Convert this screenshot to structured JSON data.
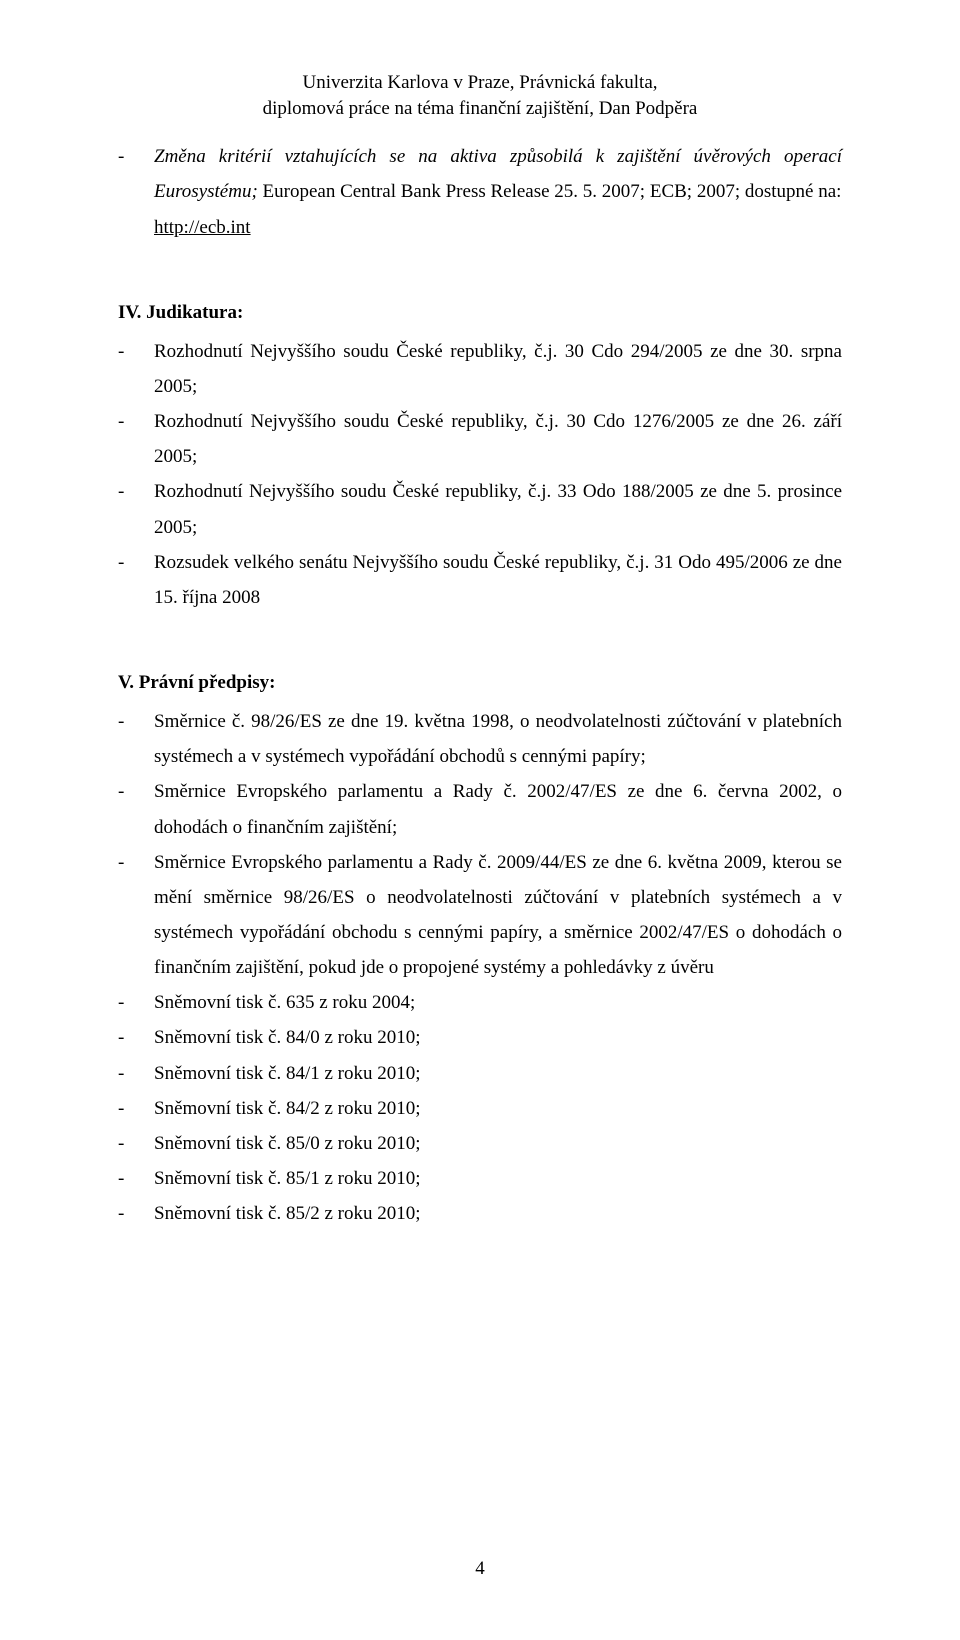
{
  "header": {
    "line1": "Univerzita Karlova v Praze, Právnická fakulta,",
    "line2": "diplomová práce na téma finanční zajištění, Dan Podpěra"
  },
  "topItem": {
    "italicPart": "Změna kritérií vztahujících se na aktiva způsobilá k zajištění úvěrových operací Eurosystému;",
    "rest": " European Central Bank Press Release 25. 5. 2007; ECB; 2007; dostupné na:"
  },
  "link": "http://ecb.int",
  "section4": {
    "title": "IV. Judikatura:",
    "items": [
      "Rozhodnutí Nejvyššího soudu České republiky, č.j. 30 Cdo 294/2005 ze dne 30. srpna 2005;",
      "Rozhodnutí Nejvyššího soudu České republiky, č.j. 30 Cdo 1276/2005 ze dne 26. září 2005;",
      "Rozhodnutí Nejvyššího soudu České republiky, č.j. 33 Odo 188/2005 ze dne 5. prosince 2005;",
      "Rozsudek velkého senátu Nejvyššího soudu České republiky, č.j. 31 Odo 495/2006 ze dne 15. října 2008"
    ]
  },
  "section5": {
    "title": "V. Právní předpisy:",
    "items": [
      "Směrnice č. 98/26/ES ze dne 19. května 1998, o neodvolatelnosti zúčtování v platebních systémech a v systémech vypořádání obchodů s cennými papíry;",
      "Směrnice Evropského parlamentu a Rady č. 2002/47/ES ze dne 6. června 2002, o dohodách o finančním zajištění;",
      "Směrnice Evropského parlamentu a Rady č. 2009/44/ES ze dne 6. května 2009, kterou se mění směrnice 98/26/ES o neodvolatelnosti zúčtování v platebních systémech a v systémech vypořádání obchodu s cennými papíry, a směrnice 2002/47/ES o dohodách o finančním zajištění, pokud jde o propojené systémy a pohledávky z úvěru",
      "Sněmovní tisk č. 635 z roku 2004;",
      "Sněmovní tisk č. 84/0 z roku 2010;",
      "Sněmovní tisk č. 84/1 z roku 2010;",
      "Sněmovní tisk č. 84/2 z roku 2010;",
      "Sněmovní tisk č. 85/0 z roku 2010;",
      "Sněmovní tisk č. 85/1 z roku 2010;",
      "Sněmovní tisk č. 85/2 z roku 2010;"
    ]
  },
  "footer": {
    "pageNumber": "4"
  },
  "dash": "-"
}
